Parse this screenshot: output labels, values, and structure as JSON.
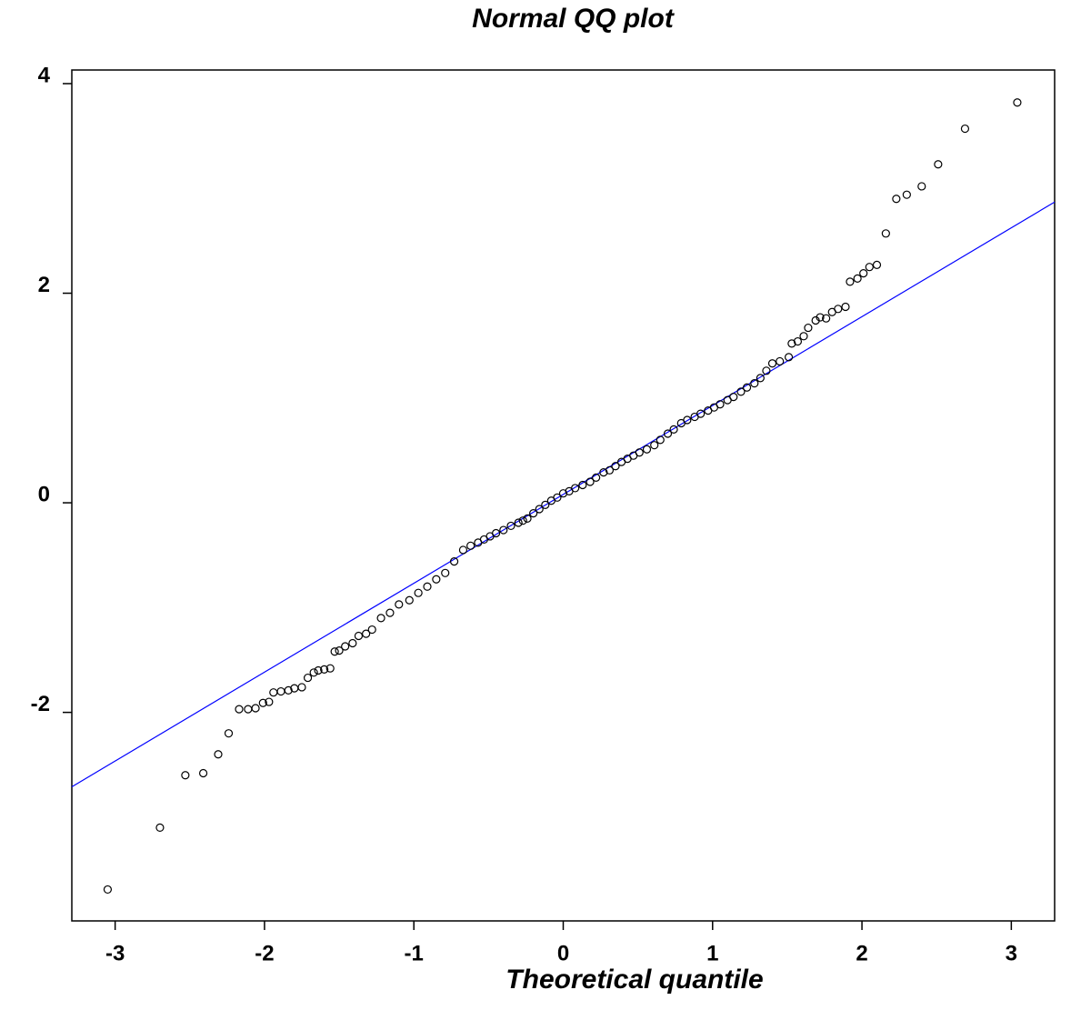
{
  "chart_data": {
    "type": "scatter",
    "title": "Normal QQ plot",
    "x_label": "Theoretical  quantile",
    "xlim": [
      -3.29,
      3.29
    ],
    "ylim": [
      -3.99,
      4.13
    ],
    "xticks": [
      -3,
      -2,
      -1,
      0,
      1,
      2,
      3
    ],
    "yticks": [
      -2,
      0,
      2,
      4
    ],
    "grid": false,
    "color": "#000000",
    "x": [
      -3.05,
      -2.7,
      -2.53,
      -2.41,
      -2.31,
      -2.24,
      -2.17,
      -2.11,
      -2.06,
      -2.01,
      -1.97,
      -1.94,
      -1.89,
      -1.84,
      -1.8,
      -1.75,
      -1.71,
      -1.67,
      -1.64,
      -1.6,
      -1.56,
      -1.53,
      -1.5,
      -1.46,
      -1.41,
      -1.37,
      -1.32,
      -1.28,
      -1.22,
      -1.16,
      -1.1,
      -1.03,
      -0.97,
      -0.91,
      -0.85,
      -0.79,
      -0.73,
      -0.67,
      -0.62,
      -0.57,
      -0.53,
      -0.49,
      -0.45,
      -0.4,
      -0.35,
      -0.3,
      -0.27,
      -0.24,
      -0.2,
      -0.16,
      -0.12,
      -0.08,
      -0.04,
      0.0,
      0.04,
      0.08,
      0.13,
      0.18,
      0.22,
      0.27,
      0.31,
      0.35,
      0.39,
      0.43,
      0.47,
      0.51,
      0.56,
      0.61,
      0.65,
      0.7,
      0.74,
      0.79,
      0.83,
      0.88,
      0.92,
      0.97,
      1.01,
      1.05,
      1.1,
      1.14,
      1.19,
      1.23,
      1.28,
      1.32,
      1.36,
      1.4,
      1.45,
      1.51,
      1.53,
      1.57,
      1.61,
      1.64,
      1.69,
      1.72,
      1.76,
      1.8,
      1.84,
      1.89,
      1.92,
      1.97,
      2.01,
      2.05,
      2.1,
      2.16,
      2.23,
      2.3,
      2.4,
      2.51,
      2.69,
      3.04
    ],
    "y": [
      -3.69,
      -3.1,
      -2.6,
      -2.58,
      -2.4,
      -2.2,
      -1.97,
      -1.97,
      -1.96,
      -1.91,
      -1.9,
      -1.81,
      -1.8,
      -1.79,
      -1.77,
      -1.76,
      -1.67,
      -1.62,
      -1.6,
      -1.59,
      -1.58,
      -1.42,
      -1.41,
      -1.37,
      -1.34,
      -1.27,
      -1.25,
      -1.21,
      -1.1,
      -1.05,
      -0.97,
      -0.93,
      -0.86,
      -0.8,
      -0.73,
      -0.67,
      -0.56,
      -0.45,
      -0.41,
      -0.38,
      -0.35,
      -0.32,
      -0.29,
      -0.26,
      -0.22,
      -0.19,
      -0.17,
      -0.15,
      -0.1,
      -0.06,
      -0.02,
      0.02,
      0.05,
      0.09,
      0.11,
      0.14,
      0.17,
      0.2,
      0.24,
      0.29,
      0.31,
      0.35,
      0.39,
      0.42,
      0.45,
      0.48,
      0.51,
      0.55,
      0.6,
      0.66,
      0.7,
      0.76,
      0.79,
      0.82,
      0.85,
      0.88,
      0.91,
      0.94,
      0.98,
      1.01,
      1.06,
      1.1,
      1.14,
      1.19,
      1.26,
      1.33,
      1.35,
      1.39,
      1.52,
      1.54,
      1.59,
      1.67,
      1.74,
      1.77,
      1.76,
      1.82,
      1.85,
      1.87,
      2.11,
      2.14,
      2.19,
      2.25,
      2.27,
      2.57,
      2.9,
      2.94,
      3.02,
      3.23,
      3.57,
      3.82
    ],
    "line": {
      "x": [
        -3.29,
        3.29
      ],
      "y": [
        -2.71,
        2.87
      ],
      "color": "#0000ff"
    }
  }
}
